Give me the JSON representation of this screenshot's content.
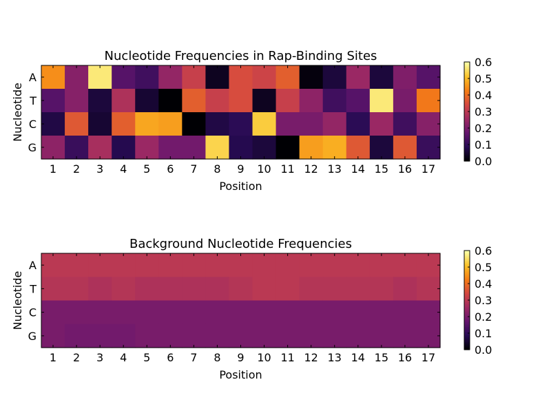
{
  "chart_data": [
    {
      "type": "heatmap",
      "title": "Nucleotide Frequencies in Rap-Binding Sites",
      "xlabel": "Position",
      "ylabel": "Nucleotide",
      "x_categories": [
        "1",
        "2",
        "3",
        "4",
        "5",
        "6",
        "7",
        "8",
        "9",
        "10",
        "11",
        "12",
        "13",
        "14",
        "15",
        "16",
        "17"
      ],
      "y_categories": [
        "A",
        "T",
        "C",
        "G"
      ],
      "values": [
        [
          0.45,
          0.22,
          0.57,
          0.15,
          0.12,
          0.24,
          0.32,
          0.03,
          0.35,
          0.33,
          0.38,
          0.01,
          0.06,
          0.25,
          0.06,
          0.21,
          0.15
        ],
        [
          0.15,
          0.22,
          0.06,
          0.28,
          0.05,
          0.0,
          0.38,
          0.32,
          0.35,
          0.03,
          0.32,
          0.23,
          0.12,
          0.15,
          0.57,
          0.2,
          0.42
        ],
        [
          0.07,
          0.37,
          0.05,
          0.38,
          0.48,
          0.47,
          0.0,
          0.07,
          0.09,
          0.53,
          0.2,
          0.2,
          0.24,
          0.09,
          0.25,
          0.12,
          0.22
        ],
        [
          0.23,
          0.11,
          0.27,
          0.08,
          0.25,
          0.19,
          0.19,
          0.54,
          0.08,
          0.06,
          0.0,
          0.47,
          0.49,
          0.37,
          0.06,
          0.37,
          0.11
        ]
      ],
      "colorbar": {
        "range": [
          0.0,
          0.6
        ],
        "ticks": [
          "0.0",
          "0.1",
          "0.2",
          "0.3",
          "0.4",
          "0.5",
          "0.6"
        ]
      }
    },
    {
      "type": "heatmap",
      "title": "Background Nucleotide Frequencies",
      "xlabel": "Position",
      "ylabel": "Nucleotide",
      "x_categories": [
        "1",
        "2",
        "3",
        "4",
        "5",
        "6",
        "7",
        "8",
        "9",
        "10",
        "11",
        "12",
        "13",
        "14",
        "15",
        "16",
        "17"
      ],
      "y_categories": [
        "A",
        "T",
        "C",
        "G"
      ],
      "values": [
        [
          0.3,
          0.3,
          0.3,
          0.3,
          0.3,
          0.3,
          0.3,
          0.3,
          0.3,
          0.3,
          0.3,
          0.3,
          0.3,
          0.3,
          0.3,
          0.3,
          0.3
        ],
        [
          0.29,
          0.29,
          0.28,
          0.29,
          0.28,
          0.28,
          0.28,
          0.28,
          0.29,
          0.3,
          0.3,
          0.29,
          0.29,
          0.29,
          0.29,
          0.28,
          0.29
        ],
        [
          0.2,
          0.2,
          0.2,
          0.2,
          0.2,
          0.2,
          0.2,
          0.2,
          0.2,
          0.2,
          0.2,
          0.2,
          0.2,
          0.2,
          0.2,
          0.2,
          0.2
        ],
        [
          0.2,
          0.19,
          0.19,
          0.19,
          0.2,
          0.2,
          0.2,
          0.2,
          0.2,
          0.2,
          0.2,
          0.2,
          0.2,
          0.2,
          0.2,
          0.2,
          0.2
        ]
      ],
      "colorbar": {
        "range": [
          0.0,
          0.6
        ],
        "ticks": [
          "0.0",
          "0.1",
          "0.2",
          "0.3",
          "0.4",
          "0.5",
          "0.6"
        ]
      }
    }
  ]
}
